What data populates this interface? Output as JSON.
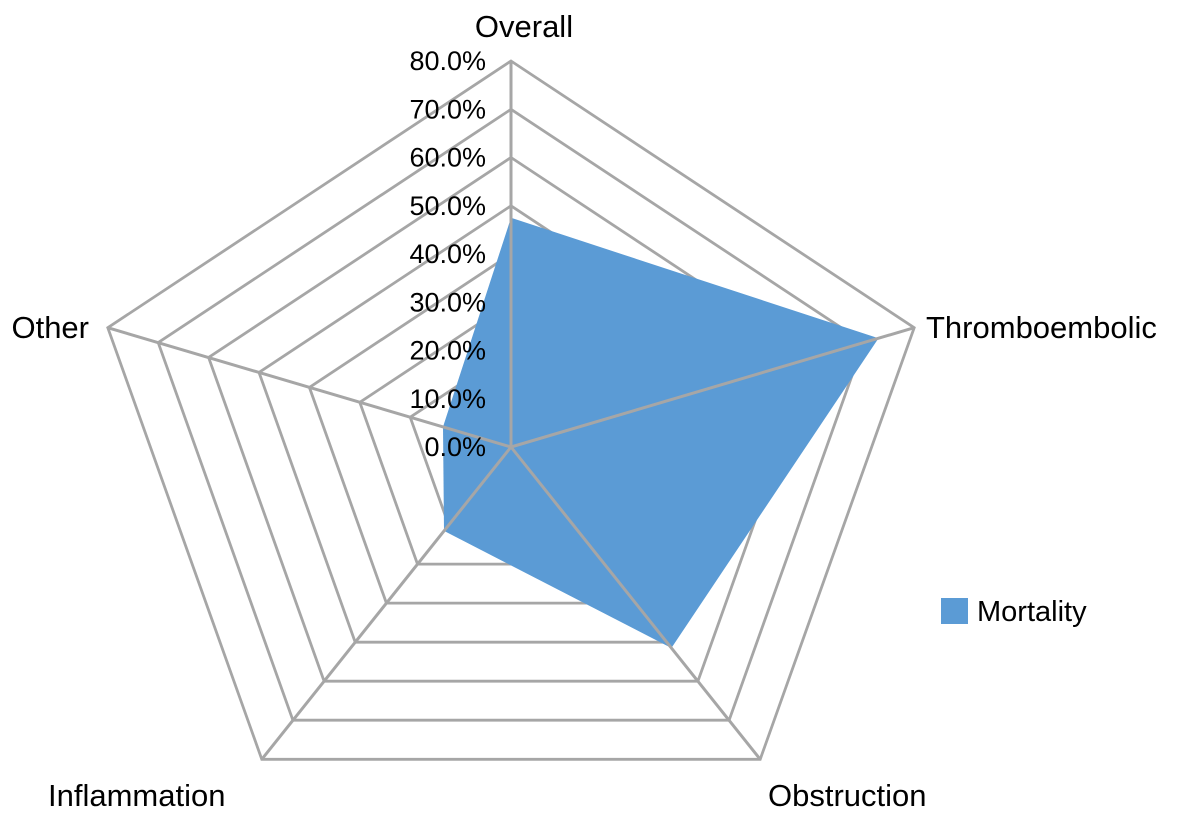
{
  "chart_data": {
    "type": "radar",
    "title": "",
    "categories": [
      "Overall",
      "Thromboembolic",
      "Obstruction",
      "Inflammation",
      "Other"
    ],
    "series": [
      {
        "name": "Mortality",
        "values": [
          47.5,
          72.9,
          51.5,
          21.5,
          13.5
        ]
      }
    ],
    "value_axis": {
      "min": 0,
      "max": 80,
      "step": 10,
      "unit": "%",
      "tick_labels": [
        "0.0%",
        "10.0%",
        "20.0%",
        "30.0%",
        "40.0%",
        "50.0%",
        "60.0%",
        "70.0%",
        "80.0%"
      ]
    },
    "legend": {
      "position": "right",
      "entries": [
        "Mortality"
      ]
    },
    "grid": true,
    "colors": {
      "series_fill": "#5B9BD5",
      "grid_line": "#A6A6A6",
      "text": "#000000",
      "background": "#FFFFFF"
    }
  }
}
